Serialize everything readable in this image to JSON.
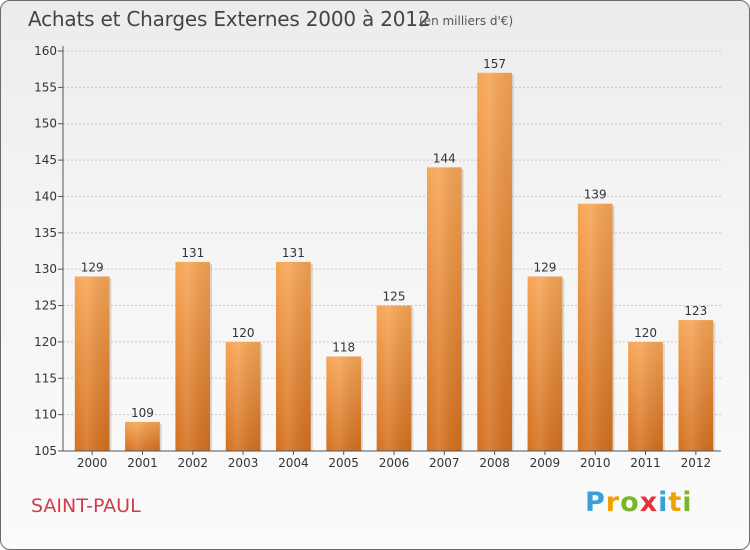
{
  "header": {
    "title": "Achats et Charges Externes 2000 à 2012",
    "subtitle": "(en milliers d'€)"
  },
  "footer": {
    "commune": "SAINT-PAUL",
    "logo_letters": [
      "P",
      "r",
      "o",
      "x",
      "i",
      "t",
      "i"
    ],
    "logo_colors": [
      "#3aa0dc",
      "#f2a000",
      "#79b62e",
      "#e2323a",
      "#3aa0dc",
      "#f2a000",
      "#79b62e"
    ]
  },
  "colors": {
    "bar_top": "#f7a555",
    "bar_bottom": "#d4701f",
    "axis": "#555555",
    "grid": "#c8c8c8"
  },
  "chart_data": {
    "type": "bar",
    "title": "Achats et Charges Externes 2000 à 2012",
    "subtitle": "(en milliers d'€)",
    "categories": [
      "2000",
      "2001",
      "2002",
      "2003",
      "2004",
      "2005",
      "2006",
      "2007",
      "2008",
      "2009",
      "2010",
      "2011",
      "2012"
    ],
    "values": [
      129,
      109,
      131,
      120,
      131,
      118,
      125,
      144,
      157,
      129,
      139,
      120,
      123
    ],
    "ylim": [
      105,
      160
    ],
    "yticks": [
      105,
      110,
      115,
      120,
      125,
      130,
      135,
      140,
      145,
      150,
      155,
      160
    ],
    "grid": true,
    "xlabel": "",
    "ylabel": ""
  }
}
